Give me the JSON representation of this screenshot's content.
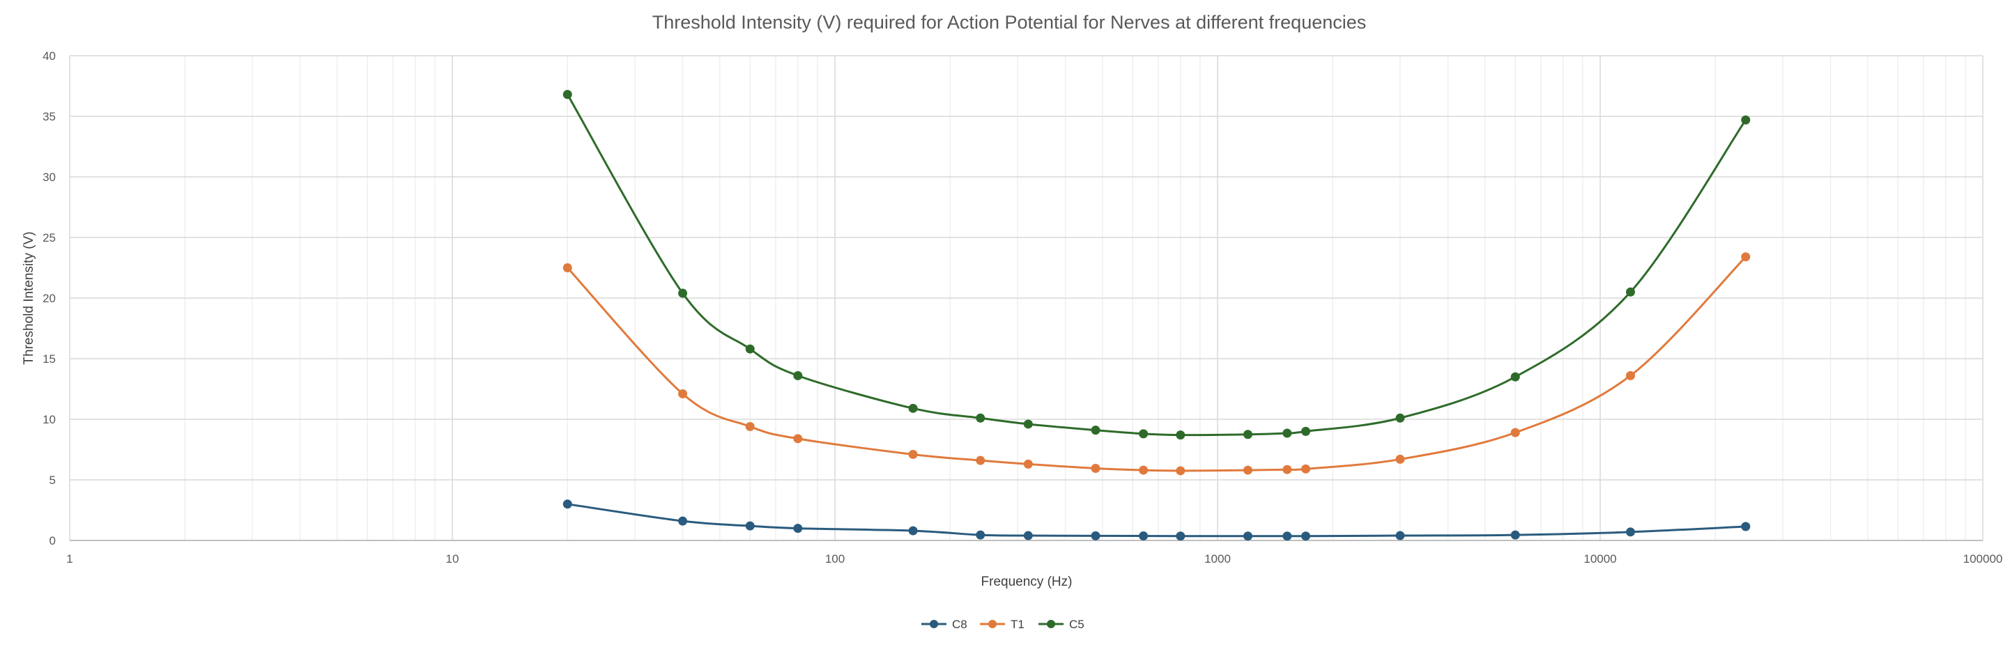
{
  "chart_data": {
    "type": "line",
    "title": "Threshold Intensity (V) required for Action Potential for Nerves at different frequencies",
    "xlabel": "Frequency (Hz)",
    "ylabel": "Threshold Intensity (V)",
    "x_scale": "log",
    "xlim": [
      1,
      100000
    ],
    "ylim": [
      0,
      40
    ],
    "x_ticks": [
      "1",
      "10",
      "100",
      "1000",
      "10000",
      "100000"
    ],
    "y_ticks": [
      "0",
      "5",
      "10",
      "15",
      "20",
      "25",
      "30",
      "35",
      "40"
    ],
    "grid": true,
    "legend_position": "bottom",
    "smooth": true,
    "x": [
      20,
      40,
      60,
      80,
      160,
      240,
      320,
      480,
      640,
      800,
      1200,
      1520,
      1700,
      3000,
      6000,
      12000,
      24000
    ],
    "series": [
      {
        "name": "C8",
        "color": "#2a5b7e",
        "values": [
          3.0,
          1.6,
          1.2,
          1.0,
          0.8,
          0.45,
          0.4,
          0.38,
          0.37,
          0.36,
          0.36,
          0.36,
          0.36,
          0.4,
          0.45,
          0.7,
          1.15
        ]
      },
      {
        "name": "T1",
        "color": "#e07a3c",
        "values": [
          22.5,
          12.1,
          9.4,
          8.4,
          7.1,
          6.6,
          6.3,
          5.95,
          5.8,
          5.75,
          5.8,
          5.85,
          5.9,
          6.7,
          8.9,
          13.6,
          23.4
        ]
      },
      {
        "name": "C5",
        "color": "#2e6b2a",
        "values": [
          36.8,
          20.4,
          15.8,
          13.6,
          10.9,
          10.1,
          9.6,
          9.1,
          8.8,
          8.7,
          8.75,
          8.85,
          9.0,
          10.1,
          13.5,
          20.5,
          34.7
        ]
      }
    ]
  }
}
